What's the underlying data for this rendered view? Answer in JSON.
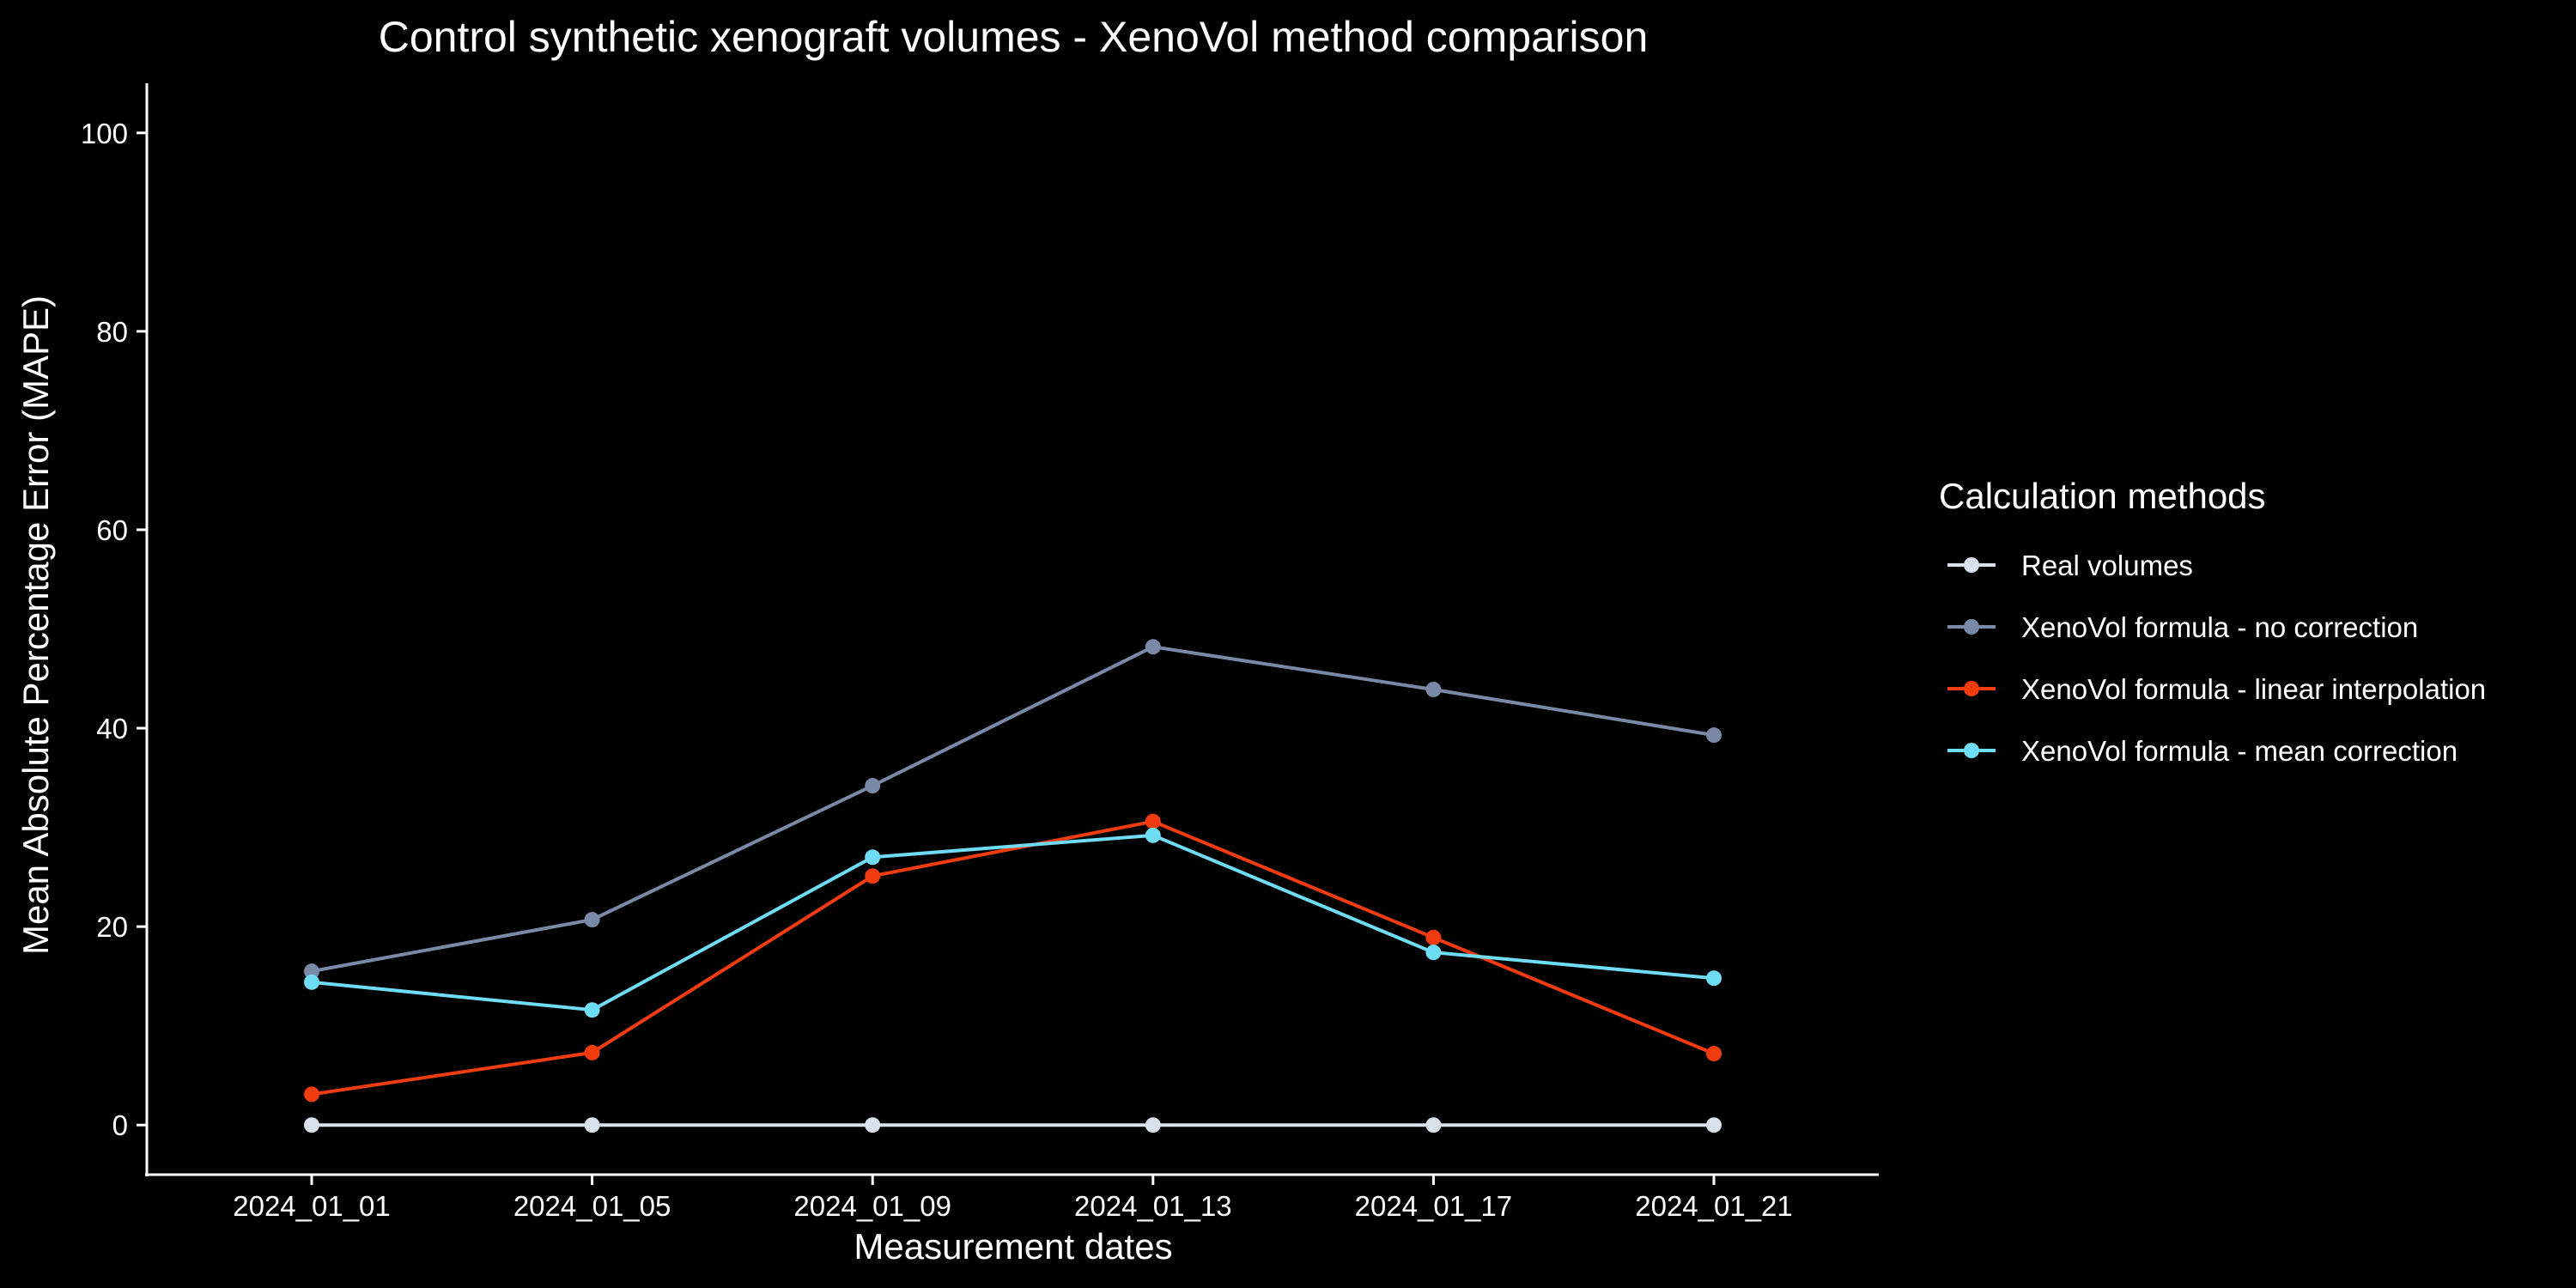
{
  "chart_data": {
    "type": "line",
    "title": "Control synthetic xenograft volumes - XenoVol method comparison",
    "xlabel": "Measurement dates",
    "ylabel": "Mean Absolute Percentage Error (MAPE)",
    "categories": [
      "2024_01_01",
      "2024_01_05",
      "2024_01_09",
      "2024_01_13",
      "2024_01_17",
      "2024_01_21"
    ],
    "ylim": [
      -5,
      105
    ],
    "yticks": [
      0,
      20,
      40,
      60,
      80,
      100
    ],
    "grid": false,
    "background": "#000000",
    "legend": {
      "title": "Calculation methods",
      "placement": "right"
    },
    "series": [
      {
        "name": "Real volumes",
        "color": "#d9e2ec",
        "values": [
          0,
          0,
          0,
          0,
          0,
          0
        ]
      },
      {
        "name": "XenoVol formula - no correction",
        "color": "#7a8aa6",
        "values": [
          15.5,
          20.7,
          34.2,
          48.2,
          43.9,
          39.3
        ]
      },
      {
        "name": "XenoVol formula - linear interpolation",
        "color": "#f03c0f",
        "values": [
          3.1,
          7.3,
          25.1,
          30.6,
          18.9,
          7.2
        ]
      },
      {
        "name": "XenoVol formula - mean correction",
        "color": "#6fdcf5",
        "values": [
          14.4,
          11.6,
          27.0,
          29.2,
          17.4,
          14.8
        ]
      }
    ]
  }
}
